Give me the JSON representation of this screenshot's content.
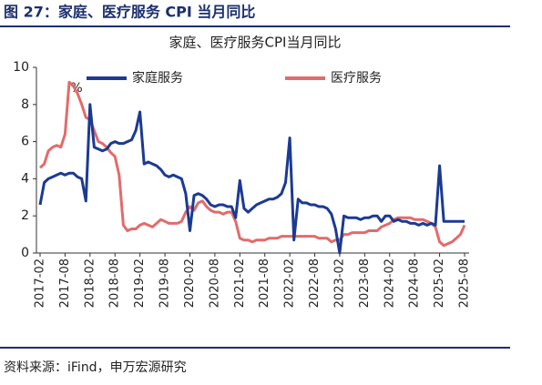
{
  "header_title": "图 27：家庭、医疗服务 CPI 当月同比",
  "source": "资料来源：iFind，申万宏源研究",
  "chart_data": {
    "type": "line",
    "title": "家庭、医疗服务CPI当月同比",
    "y_label": "%",
    "ylim": [
      0,
      10
    ],
    "yticks": [
      0,
      2,
      4,
      6,
      8,
      10
    ],
    "legend": "top",
    "categories": [
      "2017-02",
      null,
      null,
      null,
      null,
      null,
      "2017-08",
      null,
      null,
      null,
      null,
      null,
      "2018-02",
      null,
      null,
      null,
      null,
      null,
      "2018-08",
      null,
      null,
      null,
      null,
      null,
      "2019-02",
      null,
      null,
      null,
      null,
      null,
      "2019-08",
      null,
      null,
      null,
      null,
      null,
      "2020-02",
      null,
      null,
      null,
      null,
      null,
      "2020-08",
      null,
      null,
      null,
      null,
      null,
      "2021-02",
      null,
      null,
      null,
      null,
      null,
      "2021-08",
      null,
      null,
      null,
      null,
      null,
      "2022-02",
      null,
      null,
      null,
      null,
      null,
      "2022-08",
      null,
      null,
      null,
      null,
      null,
      "2023-02",
      null,
      null,
      null,
      null,
      null,
      "2023-08",
      null,
      null,
      null,
      null,
      null,
      "2024-02",
      null,
      null,
      null,
      null,
      null,
      "2024-08",
      null,
      null,
      null,
      null,
      null,
      "2025-02",
      null,
      null,
      null,
      null,
      null,
      "2025-08"
    ],
    "series": [
      {
        "name": "家庭服务",
        "color": "#1b3a93",
        "values": [
          2.6,
          3.8,
          4.0,
          4.1,
          4.2,
          4.3,
          4.2,
          4.3,
          4.3,
          4.1,
          4.0,
          2.8,
          8.0,
          5.7,
          5.6,
          5.5,
          5.6,
          5.9,
          6.0,
          5.9,
          5.9,
          6.0,
          6.1,
          6.6,
          7.6,
          4.8,
          4.9,
          4.8,
          4.7,
          4.5,
          4.2,
          4.1,
          4.2,
          4.1,
          4.0,
          3.2,
          1.2,
          3.1,
          3.2,
          3.1,
          2.9,
          2.6,
          2.5,
          2.6,
          2.6,
          2.5,
          2.5,
          1.9,
          3.9,
          2.4,
          2.2,
          2.4,
          2.6,
          2.7,
          2.8,
          2.9,
          2.9,
          3.0,
          3.2,
          3.8,
          6.2,
          0.7,
          2.9,
          2.7,
          2.7,
          2.6,
          2.6,
          2.5,
          2.5,
          2.4,
          2.1,
          1.3,
          0.0,
          2.0,
          1.9,
          1.9,
          1.9,
          1.8,
          1.9,
          1.9,
          2.0,
          2.0,
          1.7,
          2.0,
          2.0,
          1.7,
          1.8,
          1.7,
          1.7,
          1.6,
          1.6,
          1.5,
          1.6,
          1.5,
          1.6,
          1.5,
          4.7,
          1.7,
          1.7,
          1.7,
          1.7,
          1.7,
          1.7
        ]
      },
      {
        "name": "医疗服务",
        "color": "#e26b6b",
        "values": [
          4.6,
          4.8,
          5.5,
          5.7,
          5.8,
          5.7,
          6.4,
          9.2,
          9.0,
          8.6,
          8.0,
          7.3,
          7.2,
          6.6,
          6.0,
          5.9,
          5.7,
          5.4,
          5.2,
          4.2,
          1.5,
          1.2,
          1.3,
          1.3,
          1.5,
          1.6,
          1.5,
          1.4,
          1.6,
          1.8,
          1.7,
          1.6,
          1.6,
          1.6,
          1.7,
          2.2,
          2.5,
          2.3,
          2.7,
          2.8,
          2.5,
          2.3,
          2.2,
          2.2,
          2.1,
          2.2,
          2.2,
          1.7,
          0.8,
          0.7,
          0.7,
          0.6,
          0.7,
          0.7,
          0.7,
          0.8,
          0.8,
          0.8,
          0.9,
          0.9,
          0.9,
          0.9,
          0.9,
          0.9,
          0.9,
          0.9,
          0.9,
          0.8,
          0.8,
          0.8,
          0.6,
          0.7,
          0.7,
          1.0,
          1.0,
          1.1,
          1.1,
          1.1,
          1.1,
          1.2,
          1.2,
          1.2,
          1.4,
          1.5,
          1.6,
          1.8,
          1.9,
          1.9,
          1.9,
          1.9,
          1.8,
          1.8,
          1.8,
          1.7,
          1.6,
          1.4,
          0.6,
          0.4,
          0.5,
          0.6,
          0.8,
          1.0,
          1.5
        ]
      }
    ]
  }
}
